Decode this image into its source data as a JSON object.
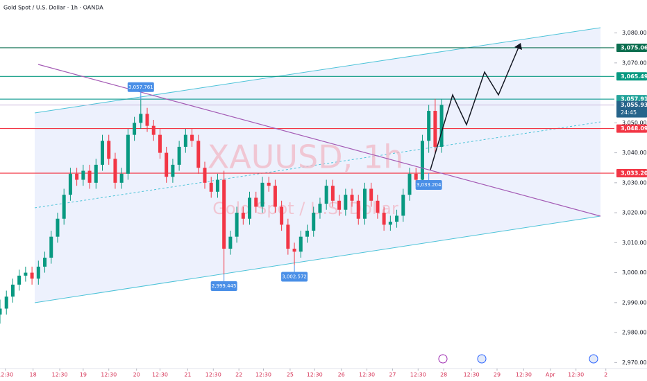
{
  "chart_data": {
    "type": "candlestick",
    "title": "Gold Spot / U.S. Dollar · 1h · OANDA",
    "watermark": "XAUUSD, 1h",
    "watermark_subtitle": "Gold Spot / U.S. Dollar",
    "countdown": "24:45",
    "up_color": "#089981",
    "down_color": "#f23645",
    "x": [
      0,
      3,
      6,
      9,
      12,
      15,
      18,
      21,
      24,
      27,
      30,
      33,
      36,
      39,
      42,
      45,
      48,
      51,
      54,
      57,
      60,
      63,
      66,
      69,
      72,
      75,
      78,
      81,
      84,
      87,
      90,
      93,
      96,
      99,
      102,
      105,
      108,
      111,
      114,
      117,
      120,
      123,
      126,
      129,
      132,
      135,
      138,
      141,
      144,
      147,
      150,
      153,
      156,
      159,
      162,
      165,
      168,
      171,
      174,
      177,
      180,
      183,
      186,
      189,
      192,
      195,
      198,
      201,
      204,
      207
    ],
    "open": [
      2986,
      2988,
      2992,
      2996,
      2999,
      3000,
      2998,
      3002,
      3005,
      3012,
      3018,
      3026,
      3033,
      3031,
      3034,
      3030,
      3036,
      3044,
      3038,
      3030,
      3033,
      3046,
      3050,
      3053,
      3049,
      3046,
      3040,
      3032,
      3036,
      3042,
      3046,
      3044,
      3035,
      3030,
      3027,
      3031,
      3008,
      3012,
      3020,
      3018,
      3025,
      3022,
      3030,
      3029,
      3022,
      3016,
      3008,
      3007,
      3012,
      3014,
      3020,
      3023,
      3029,
      3024,
      3021,
      3026,
      3024,
      3018,
      3028,
      3024,
      3020,
      3016,
      3017,
      3019,
      3026,
      3033,
      3031,
      3044,
      3054,
      3042
    ],
    "high": [
      2991,
      2994,
      2998,
      3001,
      3002,
      3002,
      3004,
      3007,
      3014,
      3020,
      3028,
      3035,
      3035,
      3036,
      3036,
      3038,
      3046,
      3046,
      3040,
      3035,
      3048,
      3052,
      3057.761,
      3055,
      3051,
      3048,
      3042,
      3038,
      3044,
      3048,
      3048,
      3046,
      3037,
      3032,
      3033,
      3034,
      3014,
      3022,
      3022,
      3027,
      3027,
      3032,
      3032,
      3031,
      3024,
      3018,
      3010,
      3014,
      3016,
      3022,
      3025,
      3031,
      3031,
      3026,
      3028,
      3028,
      3026,
      3030,
      3030,
      3026,
      3022,
      3019,
      3021,
      3028,
      3035,
      3035,
      3046,
      3056,
      3058,
      3058
    ],
    "low": [
      2983,
      2986,
      2990,
      2994,
      2997,
      2996,
      2996,
      3000,
      3003,
      3010,
      3016,
      3024,
      3029,
      3029,
      3028,
      3028,
      3034,
      3036,
      3028,
      3028,
      3031,
      3044,
      3048,
      3047,
      3044,
      3038,
      3030,
      3030,
      3034,
      3040,
      3042,
      3033,
      3028,
      3025,
      3025,
      2999.445,
      3006,
      3010,
      3016,
      3016,
      3020,
      3020,
      3027,
      3020,
      3014,
      3006,
      3002.572,
      3005,
      3010,
      3012,
      3018,
      3021,
      3022,
      3019,
      3019,
      3022,
      3016,
      3016,
      3022,
      3018,
      3014,
      3014,
      3015,
      3017,
      3024,
      3029,
      3029,
      3040,
      3040,
      3040
    ],
    "close": [
      2988,
      2992,
      2996,
      2999,
      3000,
      2998,
      3002,
      3005,
      3012,
      3018,
      3026,
      3033,
      3031,
      3034,
      3030,
      3036,
      3044,
      3038,
      3030,
      3033,
      3046,
      3050,
      3053,
      3049,
      3046,
      3040,
      3032,
      3036,
      3042,
      3046,
      3044,
      3035,
      3030,
      3027,
      3031,
      3008,
      3012,
      3020,
      3018,
      3025,
      3022,
      3030,
      3029,
      3022,
      3016,
      3008,
      3007,
      3012,
      3014,
      3020,
      3023,
      3029,
      3024,
      3021,
      3026,
      3024,
      3018,
      3028,
      3024,
      3020,
      3016,
      3017,
      3019,
      3026,
      3033,
      3031,
      3044,
      3054,
      3042,
      3056
    ],
    "xlim": [
      0,
      288
    ],
    "xticks": [
      {
        "value": 2.5,
        "label": "12:30"
      },
      {
        "value": 15.5,
        "label": "18"
      },
      {
        "value": 28,
        "label": "12:30"
      },
      {
        "value": 39,
        "label": "19"
      },
      {
        "value": 51,
        "label": "12:30"
      },
      {
        "value": 64,
        "label": "20"
      },
      {
        "value": 75,
        "label": "12:30"
      },
      {
        "value": 88,
        "label": "21"
      },
      {
        "value": 100,
        "label": "12:30"
      },
      {
        "value": 112,
        "label": "22"
      },
      {
        "value": 123.5,
        "label": "12:30"
      },
      {
        "value": 136,
        "label": "25"
      },
      {
        "value": 147.5,
        "label": "12:30"
      },
      {
        "value": 160,
        "label": "26"
      },
      {
        "value": 172,
        "label": "12:30"
      },
      {
        "value": 184,
        "label": "27"
      },
      {
        "value": 196,
        "label": "12:30"
      },
      {
        "value": 208,
        "label": "28"
      },
      {
        "value": 221,
        "label": "12:30"
      },
      {
        "value": 233,
        "label": "29"
      },
      {
        "value": 245.5,
        "label": "12:30"
      },
      {
        "value": 258,
        "label": "Apr"
      },
      {
        "value": 270,
        "label": "12:30"
      },
      {
        "value": 284,
        "label": "2"
      }
    ],
    "ylim": [
      2968,
      3091
    ],
    "yticks": [
      {
        "value": 2970,
        "label": "2,970.000"
      },
      {
        "value": 2980,
        "label": "2,980.000"
      },
      {
        "value": 2990,
        "label": "2,990.000"
      },
      {
        "value": 3000,
        "label": "3,000.000"
      },
      {
        "value": 3010,
        "label": "3,010.000"
      },
      {
        "value": 3020,
        "label": "3,020.000"
      },
      {
        "value": 3030,
        "label": "3,030.000"
      },
      {
        "value": 3040,
        "label": "3,040.000"
      },
      {
        "value": 3050,
        "label": "3,050.000"
      },
      {
        "value": 3070,
        "label": "3,070.000"
      },
      {
        "value": 3080,
        "label": "3,080.000"
      }
    ],
    "levels": [
      {
        "value": 3075.061,
        "label": "3,075.061",
        "color": "#0b6e4f"
      },
      {
        "value": 3065.498,
        "label": "3,065.498",
        "color": "#089981"
      },
      {
        "value": 3057.912,
        "label": "3,057.912",
        "color": "#22a39a"
      },
      {
        "value": 3055.93,
        "label": "3,055.930",
        "color": "#26648a"
      },
      {
        "value": 3048.097,
        "label": "3,048.097",
        "color": "#f23645"
      },
      {
        "value": 3033.204,
        "label": "3,033.204",
        "color": "#f23645"
      }
    ],
    "callouts": [
      {
        "x": 66,
        "value": 3057.761,
        "label": "3,057.761"
      },
      {
        "x": 105,
        "value": 2999.445,
        "label": "2,999.445"
      },
      {
        "x": 138,
        "value": 3002.572,
        "label": "3,002.572"
      },
      {
        "x": 201,
        "value": 3033.204,
        "label": "3,033.204"
      }
    ]
  }
}
